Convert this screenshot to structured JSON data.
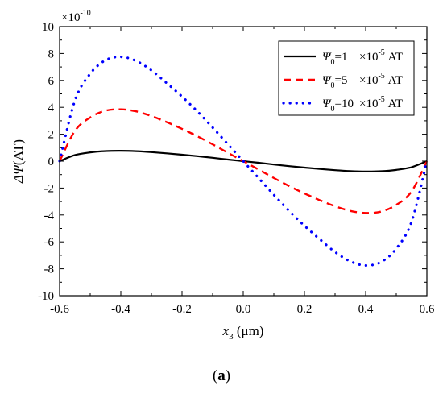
{
  "chart_data": {
    "type": "line",
    "title": "",
    "xlabel": {
      "var": "x",
      "sub": "3",
      "unit": " (μm)"
    },
    "ylabel": {
      "prefix": "Δ",
      "var": "Ψ",
      "unit": "(AT)"
    },
    "y_multiplier": {
      "base": "×10",
      "exp": "-10"
    },
    "xlim": [
      -0.6,
      0.6
    ],
    "ylim": [
      -10,
      10
    ],
    "x_ticks": [
      -0.6,
      -0.4,
      -0.2,
      0.0,
      0.2,
      0.4,
      0.6
    ],
    "x_tick_labels": [
      "-0.6",
      "-0.4",
      "-0.2",
      "0.0",
      "0.2",
      "0.4",
      "0.6"
    ],
    "y_ticks": [
      -10,
      -8,
      -6,
      -4,
      -2,
      0,
      2,
      4,
      6,
      8,
      10
    ],
    "y_tick_labels": [
      "-10",
      "-8",
      "-6",
      "-4",
      "-2",
      "0",
      "2",
      "4",
      "6",
      "8",
      "10"
    ],
    "legend_position": "top-right",
    "series": [
      {
        "name": "Ψ0=1 ×10-5 AT",
        "legend": {
          "var": "Ψ",
          "sub": "0",
          "eq": "=1",
          "mult": "×10",
          "exp": "-5",
          "unit": " AT"
        },
        "style": "solid",
        "color": "#000000",
        "x": [
          -0.6,
          -0.55,
          -0.5,
          -0.45,
          -0.4,
          -0.35,
          -0.3,
          -0.25,
          -0.2,
          -0.15,
          -0.1,
          -0.05,
          0.0,
          0.05,
          0.1,
          0.15,
          0.2,
          0.25,
          0.3,
          0.35,
          0.4,
          0.45,
          0.5,
          0.55,
          0.6
        ],
        "y": [
          0.0,
          0.45,
          0.65,
          0.75,
          0.77,
          0.74,
          0.67,
          0.58,
          0.48,
          0.37,
          0.25,
          0.12,
          0.0,
          -0.12,
          -0.25,
          -0.37,
          -0.48,
          -0.58,
          -0.67,
          -0.74,
          -0.77,
          -0.75,
          -0.65,
          -0.45,
          0.0
        ]
      },
      {
        "name": "Ψ0=5 ×10-5 AT",
        "legend": {
          "var": "Ψ",
          "sub": "0",
          "eq": "=5",
          "mult": "×10",
          "exp": "-5",
          "unit": " AT"
        },
        "style": "dashed",
        "color": "#ff0000",
        "x": [
          -0.6,
          -0.55,
          -0.5,
          -0.45,
          -0.4,
          -0.35,
          -0.3,
          -0.25,
          -0.2,
          -0.15,
          -0.1,
          -0.05,
          0.0,
          0.05,
          0.1,
          0.15,
          0.2,
          0.25,
          0.3,
          0.35,
          0.4,
          0.45,
          0.5,
          0.55,
          0.6
        ],
        "y": [
          0.0,
          2.25,
          3.25,
          3.75,
          3.85,
          3.7,
          3.35,
          2.9,
          2.4,
          1.85,
          1.25,
          0.62,
          0.0,
          -0.62,
          -1.25,
          -1.85,
          -2.4,
          -2.9,
          -3.35,
          -3.7,
          -3.85,
          -3.75,
          -3.25,
          -2.25,
          0.0
        ]
      },
      {
        "name": "Ψ0=10 ×10-5 AT",
        "legend": {
          "var": "Ψ",
          "sub": "0",
          "eq": "=10",
          "mult": "×10",
          "exp": "-5",
          "unit": " AT"
        },
        "style": "dotted",
        "color": "#0000ff",
        "x": [
          -0.6,
          -0.55,
          -0.5,
          -0.45,
          -0.4,
          -0.35,
          -0.3,
          -0.25,
          -0.2,
          -0.15,
          -0.1,
          -0.05,
          0.0,
          0.05,
          0.1,
          0.15,
          0.2,
          0.25,
          0.3,
          0.35,
          0.4,
          0.45,
          0.5,
          0.55,
          0.6
        ],
        "y": [
          0.0,
          4.5,
          6.5,
          7.5,
          7.75,
          7.45,
          6.75,
          5.8,
          4.8,
          3.7,
          2.5,
          1.25,
          0.0,
          -1.25,
          -2.5,
          -3.7,
          -4.8,
          -5.8,
          -6.75,
          -7.45,
          -7.75,
          -7.5,
          -6.5,
          -4.5,
          0.0
        ]
      }
    ]
  },
  "caption": {
    "open": "(",
    "letter": "a",
    "close": ")"
  }
}
